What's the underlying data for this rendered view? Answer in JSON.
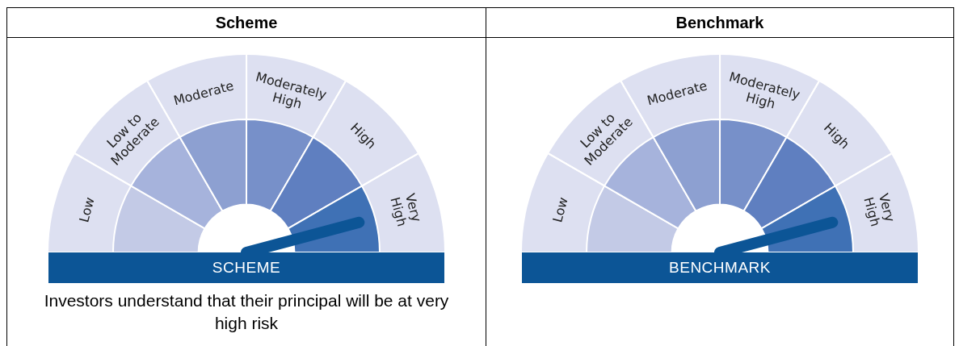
{
  "chart_data": [
    {
      "type": "donut",
      "title": "Scheme",
      "xlabel": "SCHEME",
      "categories": [
        "Low",
        "Low to Moderate",
        "Moderate",
        "Moderately High",
        "High",
        "Very High"
      ],
      "values": [
        16.67,
        16.67,
        16.67,
        16.67,
        16.66,
        16.66
      ],
      "colors": [
        "#c3cae6",
        "#a6b3dc",
        "#8da0d1",
        "#7790c9",
        "#5f7fc0",
        "#3f71b5"
      ],
      "needle": "Very High",
      "annotations": [
        "Investors understand that their principal will be at very high risk"
      ]
    },
    {
      "type": "donut",
      "title": "Benchmark",
      "xlabel": "BENCHMARK",
      "categories": [
        "Low",
        "Low to Moderate",
        "Moderate",
        "Moderately High",
        "High",
        "Very High"
      ],
      "values": [
        16.67,
        16.67,
        16.67,
        16.67,
        16.66,
        16.66
      ],
      "colors": [
        "#c3cae6",
        "#a6b3dc",
        "#8da0d1",
        "#7790c9",
        "#5f7fc0",
        "#3f71b5"
      ],
      "needle": "Very High"
    }
  ]
}
